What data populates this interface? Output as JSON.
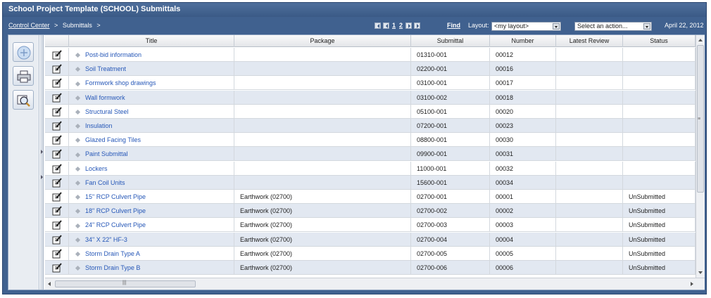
{
  "window": {
    "title": "School Project Template (SCHOOL)   Submittals"
  },
  "breadcrumb": {
    "root": "Control Center",
    "sep": ">",
    "current": "Submittals",
    "trail": ">"
  },
  "pager": {
    "pages": [
      "1",
      "2"
    ],
    "current": "1"
  },
  "toolbar": {
    "find_label": "Find",
    "layout_label": "Layout:",
    "layout_value": "<my layout>",
    "action_value": "Select an action...",
    "date": "April 22, 2012"
  },
  "columns": [
    "Title",
    "Package",
    "Submittal",
    "Number",
    "Latest Review",
    "Status"
  ],
  "rows": [
    {
      "title": "Post-bid information",
      "package": "",
      "submittal": "01310-001",
      "number": "00012",
      "review": "",
      "status": ""
    },
    {
      "title": "Soil Treatment",
      "package": "",
      "submittal": "02200-001",
      "number": "00016",
      "review": "",
      "status": ""
    },
    {
      "title": "Formwork shop drawings",
      "package": "",
      "submittal": "03100-001",
      "number": "00017",
      "review": "",
      "status": ""
    },
    {
      "title": "Wall formwork",
      "package": "",
      "submittal": "03100-002",
      "number": "00018",
      "review": "",
      "status": ""
    },
    {
      "title": "Structural Steel",
      "package": "",
      "submittal": "05100-001",
      "number": "00020",
      "review": "",
      "status": ""
    },
    {
      "title": "Insulation",
      "package": "",
      "submittal": "07200-001",
      "number": "00023",
      "review": "",
      "status": ""
    },
    {
      "title": "Glazed Facing Tiles",
      "package": "",
      "submittal": "08800-001",
      "number": "00030",
      "review": "",
      "status": ""
    },
    {
      "title": "Paint Submittal",
      "package": "",
      "submittal": "09900-001",
      "number": "00031",
      "review": "",
      "status": ""
    },
    {
      "title": "Lockers",
      "package": "",
      "submittal": "11000-001",
      "number": "00032",
      "review": "",
      "status": ""
    },
    {
      "title": "Fan Coil Units",
      "package": "",
      "submittal": "15600-001",
      "number": "00034",
      "review": "",
      "status": ""
    },
    {
      "title": "15\" RCP Culvert Pipe",
      "package": "Earthwork (02700)",
      "submittal": "02700-001",
      "number": "00001",
      "review": "",
      "status": "UnSubmitted"
    },
    {
      "title": "18\" RCP Culvert Pipe",
      "package": "Earthwork (02700)",
      "submittal": "02700-002",
      "number": "00002",
      "review": "",
      "status": "UnSubmitted"
    },
    {
      "title": "24\" RCP Culvert Pipe",
      "package": "Earthwork (02700)",
      "submittal": "02700-003",
      "number": "00003",
      "review": "",
      "status": "UnSubmitted"
    },
    {
      "title": "34\" X 22\" HF-3",
      "package": "Earthwork (02700)",
      "submittal": "02700-004",
      "number": "00004",
      "review": "",
      "status": "UnSubmitted"
    },
    {
      "title": "Storm Drain Type A",
      "package": "Earthwork (02700)",
      "submittal": "02700-005",
      "number": "00005",
      "review": "",
      "status": "UnSubmitted"
    },
    {
      "title": "Storm Drain Type B",
      "package": "Earthwork (02700)",
      "submittal": "02700-006",
      "number": "00006",
      "review": "",
      "status": "UnSubmitted"
    }
  ],
  "sidebar": {
    "buttons": [
      "add-icon",
      "print-icon",
      "preview-icon"
    ]
  },
  "colors": {
    "frame": "#40618f",
    "link": "#2758b8",
    "alt_row": "#e2e8f1"
  }
}
